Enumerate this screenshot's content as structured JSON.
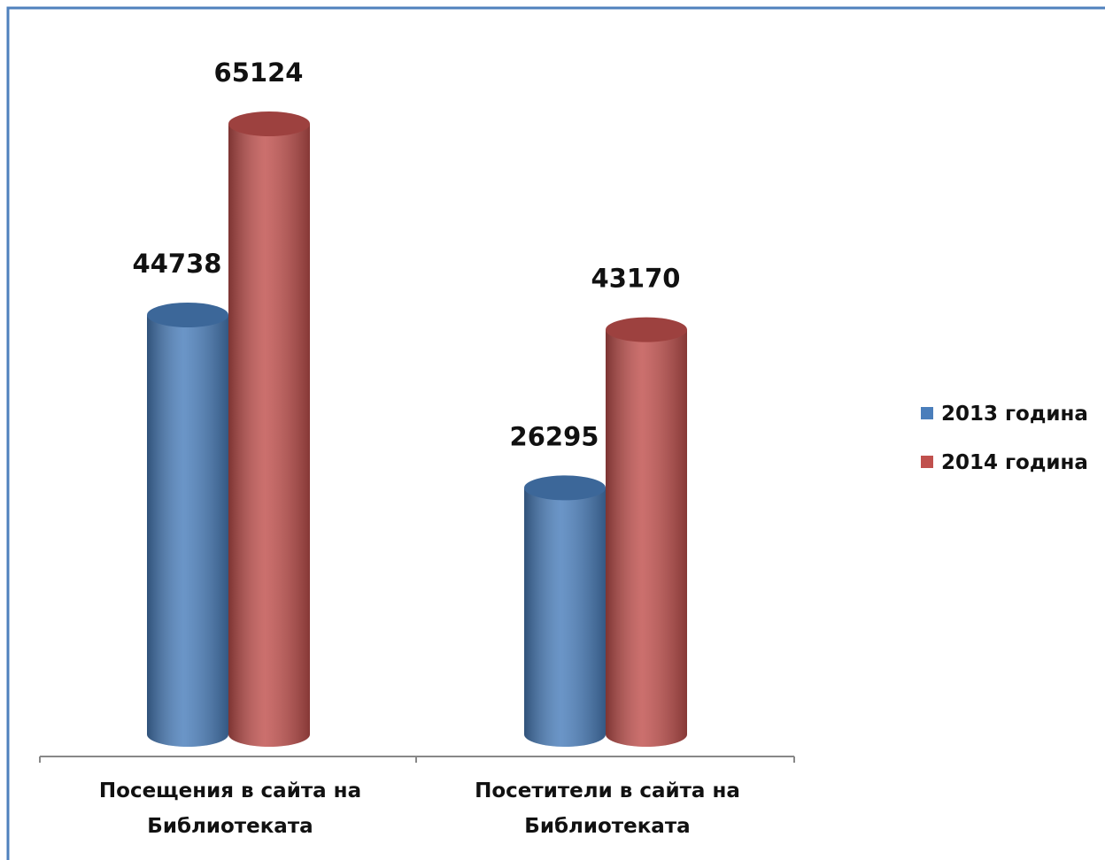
{
  "chart_data": {
    "type": "bar",
    "categories": [
      "Посещения в сайта на Библиотеката",
      "Посетители в сайта на Библиотеката"
    ],
    "series": [
      {
        "name": "2013 година",
        "color": "#4a7ebb",
        "values": [
          44738,
          26295
        ]
      },
      {
        "name": "2014 година",
        "color": "#c0504d",
        "values": [
          65124,
          43170
        ]
      }
    ],
    "legend": "right"
  }
}
